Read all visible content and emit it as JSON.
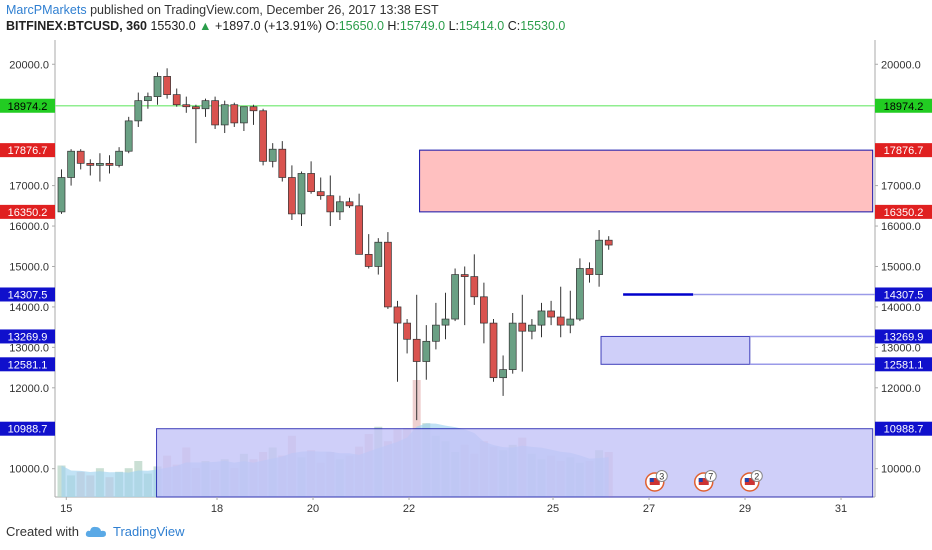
{
  "header": {
    "author": "MarcPMarkets",
    "published_text": "published on TradingView.com, December 26, 2017 13:38 EST"
  },
  "quote": {
    "symbol": "BITFINEX:BTCUSD, 360",
    "last": "15530.0",
    "change": "+1897.0 (+13.91%)",
    "open_label": "O:",
    "open": "15650.0",
    "high_label": "H:",
    "high": "15749.0",
    "low_label": "L:",
    "low": "15414.0",
    "close_label": "C:",
    "close": "15530.0"
  },
  "footer": {
    "created_with": "Created with",
    "brand": "TradingView"
  },
  "colors": {
    "up": "#6aa084",
    "down": "#d9534f",
    "green_line": "#90ee90",
    "red_zone": "#ffc0c0",
    "blue_zone": "#c4c4f8",
    "blue_line": "#0000cc",
    "label_green": "#22cc22",
    "label_red": "#e02020",
    "label_blue": "#1010cc"
  },
  "chart_data": {
    "type": "candlestick",
    "ylim": [
      9300,
      20600
    ],
    "y_ticks": [
      10000,
      11000,
      12000,
      13000,
      14000,
      15000,
      16000,
      17000,
      18000,
      19000,
      20000
    ],
    "y_tick_labels": [
      "10000.0",
      "",
      "12000.0",
      "13000.0",
      "14000.0",
      "15000.0",
      "16000.0",
      "17000.0",
      "",
      "",
      "20000.0"
    ],
    "x_tick_labels": [
      {
        "label": "15",
        "bar": 0.5
      },
      {
        "label": "18",
        "bar": 16.2
      },
      {
        "label": "20",
        "bar": 26.2
      },
      {
        "label": "22",
        "bar": 36.2
      },
      {
        "label": "25",
        "bar": 51.2
      },
      {
        "label": "27",
        "bar": 61.2
      },
      {
        "label": "29",
        "bar": 71.2
      },
      {
        "label": "31",
        "bar": 81.2
      }
    ],
    "candles": [
      {
        "o": 16350,
        "h": 17400,
        "l": 16300,
        "c": 17200
      },
      {
        "o": 17200,
        "h": 17900,
        "l": 17000,
        "c": 17850
      },
      {
        "o": 17850,
        "h": 17900,
        "l": 17400,
        "c": 17550
      },
      {
        "o": 17550,
        "h": 17650,
        "l": 17250,
        "c": 17500
      },
      {
        "o": 17500,
        "h": 17800,
        "l": 17100,
        "c": 17550
      },
      {
        "o": 17550,
        "h": 17750,
        "l": 17300,
        "c": 17500
      },
      {
        "o": 17500,
        "h": 17950,
        "l": 17450,
        "c": 17850
      },
      {
        "o": 17850,
        "h": 18700,
        "l": 17800,
        "c": 18600
      },
      {
        "o": 18600,
        "h": 19300,
        "l": 18450,
        "c": 19100
      },
      {
        "o": 19100,
        "h": 19300,
        "l": 18900,
        "c": 19200
      },
      {
        "o": 19200,
        "h": 19800,
        "l": 19000,
        "c": 19700
      },
      {
        "o": 19700,
        "h": 19900,
        "l": 19150,
        "c": 19250
      },
      {
        "o": 19250,
        "h": 19400,
        "l": 18950,
        "c": 19000
      },
      {
        "o": 19000,
        "h": 19200,
        "l": 18800,
        "c": 18950
      },
      {
        "o": 18950,
        "h": 19000,
        "l": 18050,
        "c": 18900
      },
      {
        "o": 18900,
        "h": 19150,
        "l": 18700,
        "c": 19100
      },
      {
        "o": 19100,
        "h": 19200,
        "l": 18400,
        "c": 18500
      },
      {
        "o": 18500,
        "h": 19100,
        "l": 18300,
        "c": 19000
      },
      {
        "o": 19000,
        "h": 19050,
        "l": 18450,
        "c": 18550
      },
      {
        "o": 18550,
        "h": 18950,
        "l": 18350,
        "c": 18950
      },
      {
        "o": 18950,
        "h": 19000,
        "l": 18500,
        "c": 18850
      },
      {
        "o": 18850,
        "h": 18900,
        "l": 17500,
        "c": 17600
      },
      {
        "o": 17600,
        "h": 18050,
        "l": 17450,
        "c": 17900
      },
      {
        "o": 17900,
        "h": 18100,
        "l": 17100,
        "c": 17200
      },
      {
        "o": 17200,
        "h": 17500,
        "l": 16150,
        "c": 16300
      },
      {
        "o": 16300,
        "h": 17350,
        "l": 16000,
        "c": 17300
      },
      {
        "o": 17300,
        "h": 17600,
        "l": 16800,
        "c": 16850
      },
      {
        "o": 16850,
        "h": 17200,
        "l": 16650,
        "c": 16750
      },
      {
        "o": 16750,
        "h": 17250,
        "l": 16000,
        "c": 16350
      },
      {
        "o": 16350,
        "h": 16750,
        "l": 16150,
        "c": 16600
      },
      {
        "o": 16600,
        "h": 16700,
        "l": 16450,
        "c": 16500
      },
      {
        "o": 16500,
        "h": 16800,
        "l": 15350,
        "c": 15300
      },
      {
        "o": 15300,
        "h": 15800,
        "l": 14950,
        "c": 15000
      },
      {
        "o": 15000,
        "h": 15700,
        "l": 14800,
        "c": 15600
      },
      {
        "o": 15600,
        "h": 15850,
        "l": 13950,
        "c": 14000
      },
      {
        "o": 14000,
        "h": 14150,
        "l": 12150,
        "c": 13600
      },
      {
        "o": 13600,
        "h": 13700,
        "l": 12850,
        "c": 13200
      },
      {
        "o": 13200,
        "h": 14300,
        "l": 11200,
        "c": 12650
      },
      {
        "o": 12650,
        "h": 13550,
        "l": 12200,
        "c": 13150
      },
      {
        "o": 13150,
        "h": 14100,
        "l": 12950,
        "c": 13550
      },
      {
        "o": 13550,
        "h": 14350,
        "l": 13200,
        "c": 13700
      },
      {
        "o": 13700,
        "h": 14950,
        "l": 13650,
        "c": 14800
      },
      {
        "o": 14800,
        "h": 15000,
        "l": 13550,
        "c": 14750
      },
      {
        "o": 14750,
        "h": 15300,
        "l": 14050,
        "c": 14250
      },
      {
        "o": 14250,
        "h": 14600,
        "l": 13100,
        "c": 13600
      },
      {
        "o": 13600,
        "h": 13700,
        "l": 12150,
        "c": 12250
      },
      {
        "o": 12250,
        "h": 12800,
        "l": 11800,
        "c": 12450
      },
      {
        "o": 12450,
        "h": 13850,
        "l": 12350,
        "c": 13600
      },
      {
        "o": 13600,
        "h": 14300,
        "l": 12400,
        "c": 13400
      },
      {
        "o": 13400,
        "h": 13700,
        "l": 13200,
        "c": 13550
      },
      {
        "o": 13550,
        "h": 14100,
        "l": 13250,
        "c": 13900
      },
      {
        "o": 13900,
        "h": 14150,
        "l": 13550,
        "c": 13750
      },
      {
        "o": 13750,
        "h": 14500,
        "l": 13250,
        "c": 13550
      },
      {
        "o": 13550,
        "h": 14400,
        "l": 13350,
        "c": 13700
      },
      {
        "o": 13700,
        "h": 15200,
        "l": 13650,
        "c": 14950
      },
      {
        "o": 14950,
        "h": 15100,
        "l": 14600,
        "c": 14800
      },
      {
        "o": 14800,
        "h": 15900,
        "l": 14500,
        "c": 15650
      },
      {
        "o": 15650,
        "h": 15749,
        "l": 15414,
        "c": 15530
      }
    ],
    "volumes": [
      0.35,
      0.24,
      0.28,
      0.24,
      0.32,
      0.22,
      0.28,
      0.32,
      0.4,
      0.26,
      0.34,
      0.46,
      0.36,
      0.55,
      0.32,
      0.4,
      0.3,
      0.42,
      0.32,
      0.48,
      0.42,
      0.5,
      0.55,
      0.46,
      0.68,
      0.44,
      0.52,
      0.38,
      0.5,
      0.42,
      0.46,
      0.56,
      0.7,
      0.78,
      0.62,
      0.75,
      0.76,
      1.3,
      0.82,
      0.68,
      0.62,
      0.5,
      0.58,
      0.48,
      0.62,
      0.56,
      0.52,
      0.58,
      0.66,
      0.48,
      0.42,
      0.46,
      0.4,
      0.44,
      0.38,
      0.4,
      0.52,
      0.5
    ],
    "horizontal_lines": [
      {
        "price": 18974.2,
        "label": "18974.2",
        "color": "#22cc22"
      },
      {
        "price": 17876.7,
        "label": "17876.7",
        "color": "#e02020"
      },
      {
        "price": 16350.2,
        "label": "16350.2",
        "color": "#e02020"
      },
      {
        "price": 14307.5,
        "label": "14307.5",
        "color": "#1010cc"
      },
      {
        "price": 13269.9,
        "label": "13269.9",
        "color": "#1010cc"
      },
      {
        "price": 12581.1,
        "label": "12581.1",
        "color": "#1010cc"
      },
      {
        "price": 10988.7,
        "label": "10988.7",
        "color": "#1010cc"
      }
    ],
    "zones": [
      {
        "name": "red-zone",
        "top": 17876.7,
        "bottom": 16350.2,
        "bar_start": 37.3,
        "bar_end": 84.5
      },
      {
        "name": "blue-zone-small",
        "top": 13269.9,
        "bottom": 12581.1,
        "bar_start": 56.2,
        "bar_end": 71.7
      },
      {
        "name": "blue-zone-volume",
        "top": 10988.7,
        "bottom": 9300,
        "bar_start": 9.9,
        "bar_end": 84.5
      }
    ],
    "events": [
      {
        "bar": 61.8,
        "count": "3"
      },
      {
        "bar": 66.9,
        "count": "7"
      },
      {
        "bar": 71.7,
        "count": "2"
      }
    ]
  }
}
